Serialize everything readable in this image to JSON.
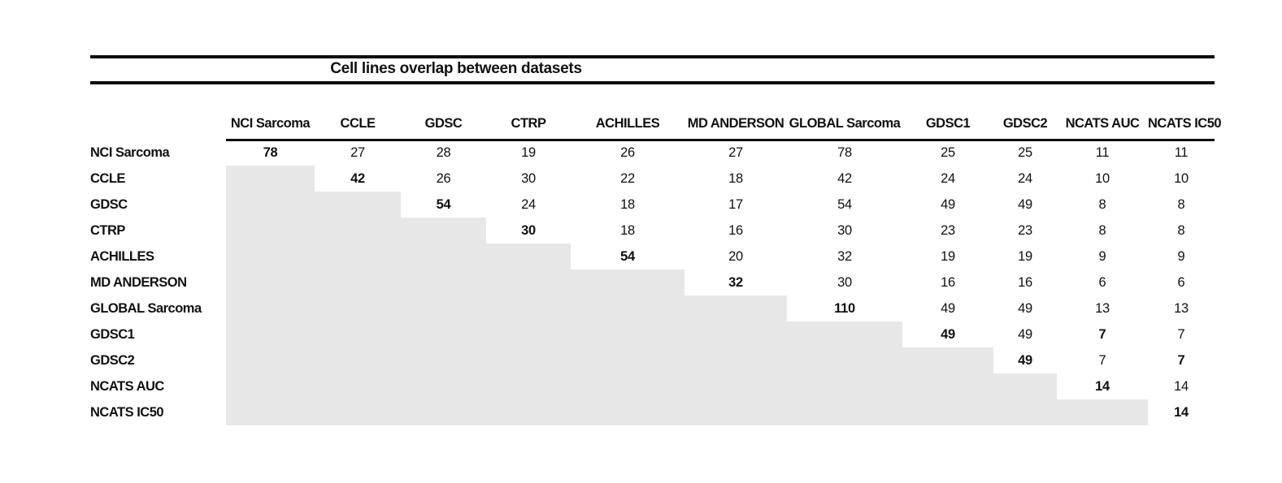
{
  "title": "Cell lines overlap between datasets",
  "colors": {
    "lower_triangle_fill": "#e7e7e7",
    "rule_color": "#0d0d0d"
  },
  "chart_data": {
    "type": "table",
    "title": "Cell lines overlap between datasets",
    "columns": [
      "NCI Sarcoma",
      "CCLE",
      "GDSC",
      "CTRP",
      "ACHILLES",
      "MD ANDERSON",
      "GLOBAL Sarcoma",
      "GDSC1",
      "GDSC2",
      "NCATS AUC",
      "NCATS IC50"
    ],
    "rows": [
      {
        "label": "NCI Sarcoma",
        "values": [
          "78",
          "27",
          "28",
          "19",
          "26",
          "27",
          "78",
          "25",
          "25",
          "11",
          "11"
        ],
        "bold": [
          0
        ]
      },
      {
        "label": "CCLE",
        "values": [
          null,
          "42",
          "26",
          "30",
          "22",
          "18",
          "42",
          "24",
          "24",
          "10",
          "10"
        ],
        "bold": [
          1
        ]
      },
      {
        "label": "GDSC",
        "values": [
          null,
          null,
          "54",
          "24",
          "18",
          "17",
          "54",
          "49",
          "49",
          "8",
          "8"
        ],
        "bold": [
          2
        ]
      },
      {
        "label": "CTRP",
        "values": [
          null,
          null,
          null,
          "30",
          "18",
          "16",
          "30",
          "23",
          "23",
          "8",
          "8"
        ],
        "bold": [
          3
        ]
      },
      {
        "label": "ACHILLES",
        "values": [
          null,
          null,
          null,
          null,
          "54",
          "20",
          "32",
          "19",
          "19",
          "9",
          "9"
        ],
        "bold": [
          4
        ]
      },
      {
        "label": "MD ANDERSON",
        "values": [
          null,
          null,
          null,
          null,
          null,
          "32",
          "30",
          "16",
          "16",
          "6",
          "6"
        ],
        "bold": [
          5
        ]
      },
      {
        "label": "GLOBAL Sarcoma",
        "values": [
          null,
          null,
          null,
          null,
          null,
          null,
          "110",
          "49",
          "49",
          "13",
          "13"
        ],
        "bold": [
          6
        ]
      },
      {
        "label": "GDSC1",
        "values": [
          null,
          null,
          null,
          null,
          null,
          null,
          null,
          "49",
          "49",
          "7",
          "7"
        ],
        "bold": [
          7,
          9
        ]
      },
      {
        "label": "GDSC2",
        "values": [
          null,
          null,
          null,
          null,
          null,
          null,
          null,
          null,
          "49",
          "7",
          "7"
        ],
        "bold": [
          8,
          10
        ]
      },
      {
        "label": "NCATS AUC",
        "values": [
          null,
          null,
          null,
          null,
          null,
          null,
          null,
          null,
          null,
          "14",
          "14"
        ],
        "bold": [
          9
        ]
      },
      {
        "label": "NCATS IC50",
        "values": [
          null,
          null,
          null,
          null,
          null,
          null,
          null,
          null,
          null,
          null,
          "14"
        ],
        "bold": [
          10
        ]
      }
    ]
  }
}
